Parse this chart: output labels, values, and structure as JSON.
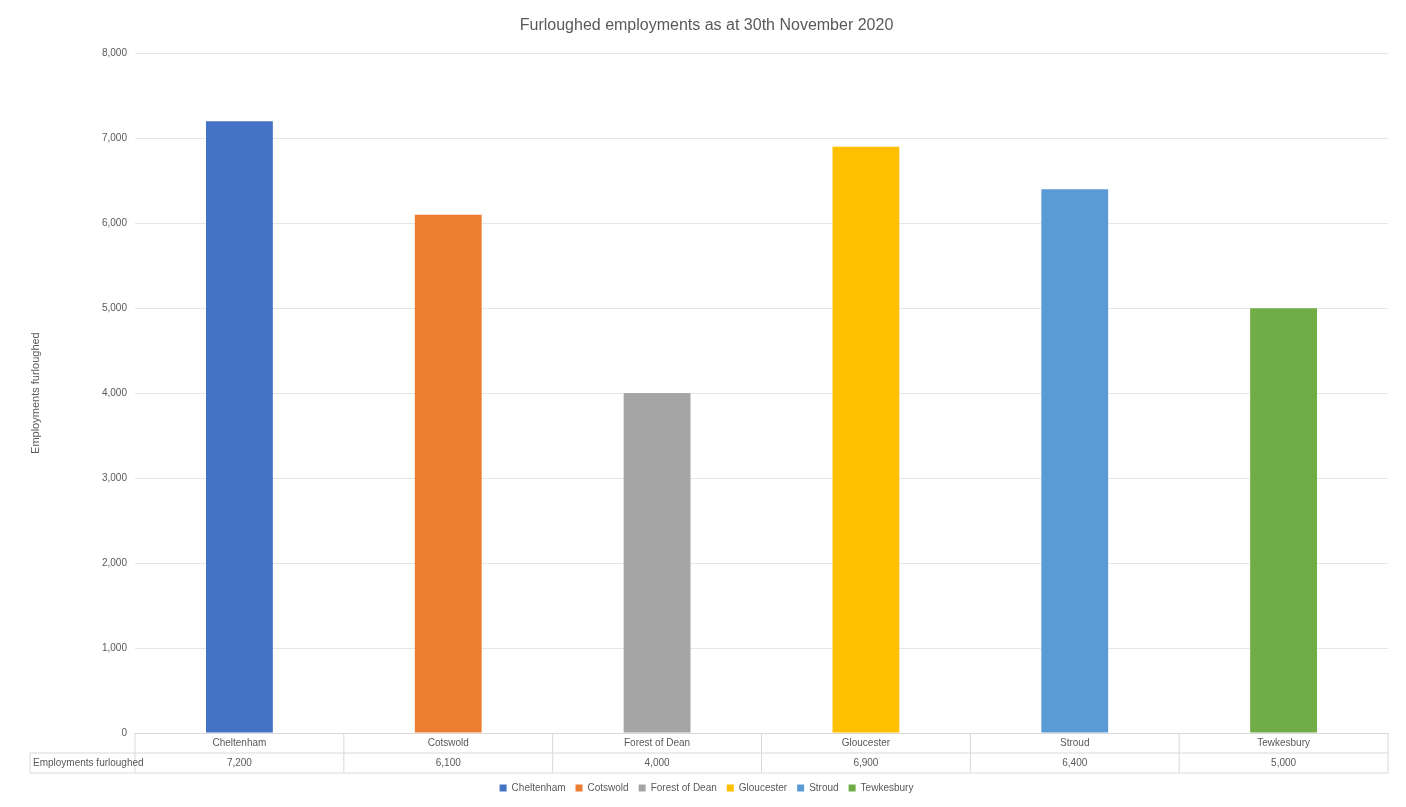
{
  "chart_data": {
    "type": "bar",
    "title": "Furloughed employments as at 30th November 2020",
    "ylabel": "Employments furloughed",
    "categories": [
      "Cheltenham",
      "Cotswold",
      "Forest of Dean",
      "Gloucester",
      "Stroud",
      "Tewkesbury"
    ],
    "series": [
      {
        "name": "Cheltenham",
        "color": "#4472c4",
        "values": [
          7200,
          null,
          null,
          null,
          null,
          null
        ],
        "value_labels": [
          "7,200",
          null,
          null,
          null,
          null,
          null
        ]
      },
      {
        "name": "Cotswold",
        "color": "#ed7d31",
        "values": [
          null,
          6100,
          null,
          null,
          null,
          null
        ],
        "value_labels": [
          null,
          "6,100",
          null,
          null,
          null,
          null
        ]
      },
      {
        "name": "Forest of Dean",
        "color": "#a5a5a5",
        "values": [
          null,
          null,
          4000,
          null,
          null,
          null
        ],
        "value_labels": [
          null,
          null,
          "4,000",
          null,
          null,
          null
        ]
      },
      {
        "name": "Gloucester",
        "color": "#ffc000",
        "values": [
          null,
          null,
          null,
          6900,
          null,
          null
        ],
        "value_labels": [
          null,
          null,
          null,
          "6,900",
          null,
          null
        ]
      },
      {
        "name": "Stroud",
        "color": "#5b9bd5",
        "values": [
          null,
          null,
          null,
          null,
          6400,
          null
        ],
        "value_labels": [
          null,
          null,
          null,
          null,
          "6,400",
          null
        ]
      },
      {
        "name": "Tewkesbury",
        "color": "#70ad47",
        "values": [
          null,
          null,
          null,
          null,
          null,
          5000
        ],
        "value_labels": [
          null,
          null,
          null,
          null,
          null,
          "5,000"
        ]
      }
    ],
    "ylim": [
      0,
      8000
    ],
    "yticks": [
      0,
      {
        "value": 1000,
        "label": "1,000"
      },
      {
        "value": 2000,
        "label": "2,000"
      },
      {
        "value": 3000,
        "label": "3,000"
      },
      {
        "value": 4000,
        "label": "4,000"
      },
      {
        "value": 5000,
        "label": "5,000"
      },
      {
        "value": 6000,
        "label": "6,000"
      },
      {
        "value": 7000,
        "label": "7,000"
      },
      {
        "value": 8000,
        "label": "8,000"
      }
    ],
    "grid": "y",
    "legend": "bottom"
  }
}
